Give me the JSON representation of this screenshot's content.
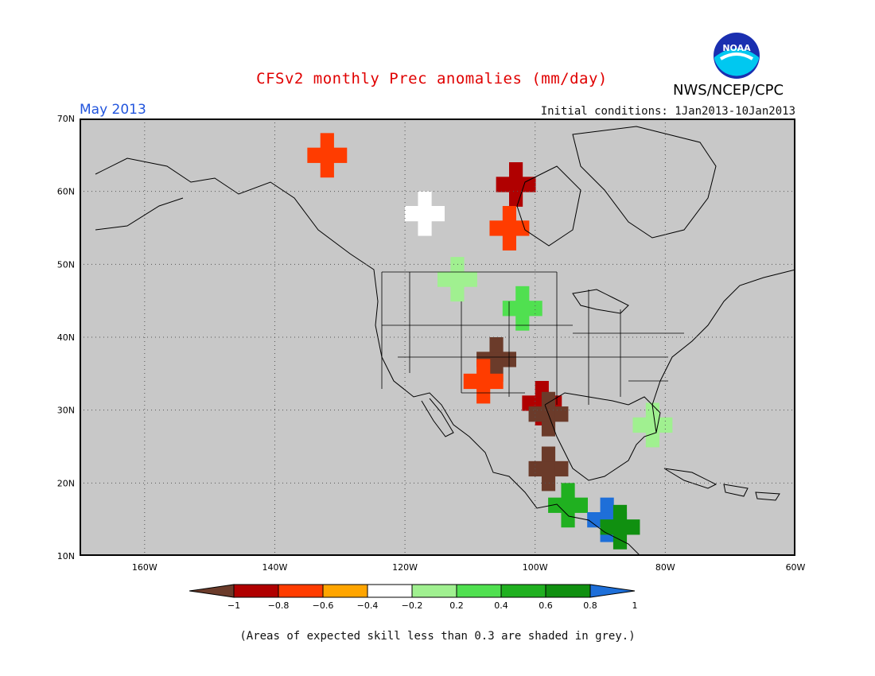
{
  "header": {
    "title": "CFSv2 monthly Prec anomalies (mm/day)",
    "month": "May 2013",
    "initial_conditions": "Initial conditions: 1Jan2013-10Jan2013",
    "agency": "NWS/NCEP/CPC",
    "logo_icon": "noaa-logo-icon",
    "logo_text": "NOAA"
  },
  "map": {
    "extent": {
      "lon_min": -170,
      "lon_max": -60,
      "lat_min": 10,
      "lat_max": 70
    },
    "lat_labels": [
      "70N",
      "60N",
      "50N",
      "40N",
      "30N",
      "20N",
      "10N"
    ],
    "lon_labels": [
      "160W",
      "140W",
      "120W",
      "100W",
      "80W",
      "60W"
    ],
    "background_color": "#c8c8c8",
    "grid": true
  },
  "legend": {
    "ticks": [
      "-1",
      "-0.8",
      "-0.6",
      "-0.4",
      "-0.2",
      "0.2",
      "0.4",
      "0.6",
      "0.8",
      "1"
    ],
    "colors": [
      "#6b3b2a",
      "#b00000",
      "#ff3c00",
      "#ffa500",
      "#ffffff",
      "#a0f090",
      "#50e050",
      "#20b020",
      "#109010",
      "#1e6fd9"
    ]
  },
  "footnote": "(Areas of expected skill less than 0.3 are shaded in grey.)",
  "anomaly_regions": [
    {
      "lon": -132,
      "lat": 65,
      "value": -0.4
    },
    {
      "lon": -103,
      "lat": 61,
      "value": -0.6
    },
    {
      "lon": -104,
      "lat": 55,
      "value": -0.4
    },
    {
      "lon": -117,
      "lat": 57,
      "value": 0.0
    },
    {
      "lon": -112,
      "lat": 48,
      "value": 0.3
    },
    {
      "lon": -102,
      "lat": 44,
      "value": 0.4
    },
    {
      "lon": -106,
      "lat": 37,
      "value": -0.8
    },
    {
      "lon": -108,
      "lat": 34,
      "value": -0.4
    },
    {
      "lon": -99,
      "lat": 31,
      "value": -0.6
    },
    {
      "lon": -98,
      "lat": 29.5,
      "value": -0.8
    },
    {
      "lon": -98,
      "lat": 22,
      "value": -1.0
    },
    {
      "lon": -95,
      "lat": 17,
      "value": 0.6
    },
    {
      "lon": -89,
      "lat": 15,
      "value": 1.0
    },
    {
      "lon": -87,
      "lat": 14,
      "value": 0.8
    },
    {
      "lon": -82,
      "lat": 28,
      "value": 0.3
    }
  ]
}
